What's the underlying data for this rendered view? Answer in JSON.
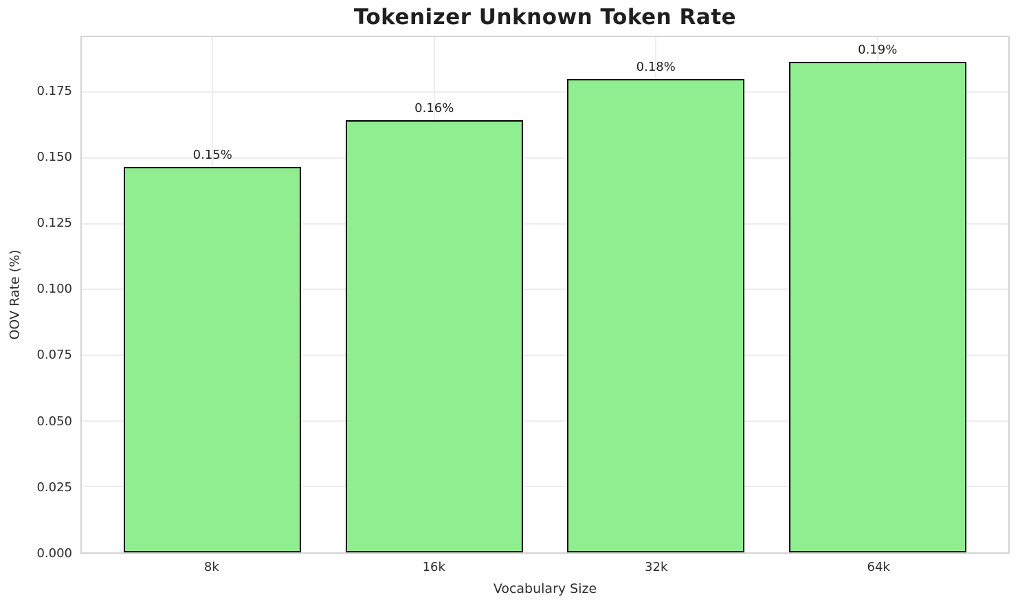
{
  "chart_data": {
    "type": "bar",
    "title": "Tokenizer Unknown Token Rate",
    "xlabel": "Vocabulary Size",
    "ylabel": "OOV Rate (%)",
    "categories": [
      "8k",
      "16k",
      "32k",
      "64k"
    ],
    "values": [
      0.1465,
      0.1645,
      0.1801,
      0.1866
    ],
    "bar_labels": [
      "0.15%",
      "0.16%",
      "0.18%",
      "0.19%"
    ],
    "yticks": [
      0.0,
      0.025,
      0.05,
      0.075,
      0.1,
      0.125,
      0.15,
      0.175
    ],
    "ytick_labels": [
      "0.000",
      "0.025",
      "0.050",
      "0.075",
      "0.100",
      "0.125",
      "0.150",
      "0.175"
    ],
    "ylim": [
      0,
      0.196
    ],
    "bar_width_fraction": 0.8,
    "x_margin_units": 0.59,
    "grid": true,
    "legend_position": "none",
    "colors": {
      "bar_fill": "#90EE90",
      "bar_edge": "#000000",
      "gridline": "#ededed",
      "spine": "#d4d4d4",
      "title_text": "#1f1f1f",
      "tick_text": "#2e2e2e",
      "background": "#ffffff"
    }
  }
}
